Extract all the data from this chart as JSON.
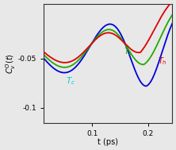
{
  "xlabel": "t (ps)",
  "ylabel": "$C_v^O(t)$",
  "xlim": [
    0.055,
    0.27
  ],
  "ylim": [
    -0.115,
    0.005
  ],
  "yticks": [
    -0.1,
    -0.05
  ],
  "ytick_labels": [
    "-0.1",
    "-0.05"
  ],
  "xticks": [
    0.1,
    0.2
  ],
  "xtick_labels": [
    "0.1",
    "0.2"
  ],
  "colors": {
    "red": "#dd0000",
    "green": "#22aa00",
    "blue": "#0000dd"
  },
  "bg_color": "#e8e8e8"
}
